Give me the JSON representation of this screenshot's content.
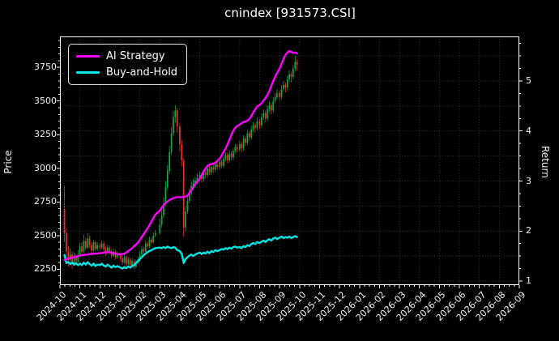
{
  "title": "cnindex [931573.CSI]",
  "legend": {
    "items": [
      {
        "label": "AI Strategy",
        "color": "#ff00ff"
      },
      {
        "label": "Buy-and-Hold",
        "color": "#00e5e5"
      }
    ]
  },
  "axes": {
    "left": {
      "label": "Price",
      "ticks": [
        2250,
        2500,
        2750,
        3000,
        3250,
        3500,
        3750
      ],
      "range": [
        2132,
        3980
      ]
    },
    "right": {
      "label": "Return",
      "ticks": [
        1,
        2,
        3,
        4,
        5
      ],
      "range": [
        0.92,
        5.89
      ],
      "grid_values": [
        1,
        1.5,
        2,
        2.5,
        3,
        3.5,
        4,
        4.5,
        5,
        5.5
      ]
    },
    "bottom": {
      "ticks": [
        "2024-10",
        "2024-11",
        "2024-12",
        "2025-01",
        "2025-02",
        "2025-03",
        "2025-04",
        "2025-05",
        "2025-06",
        "2025-07",
        "2025-08",
        "2025-09",
        "2025-10",
        "2025-11",
        "2025-12",
        "2026-01",
        "2026-02",
        "2026-03",
        "2026-04",
        "2026-05",
        "2026-06",
        "2026-07",
        "2026-08",
        "2026-09"
      ]
    }
  },
  "colors": {
    "background": "#000000",
    "text": "#f2f2f2",
    "spine": "#ffffff",
    "grid": "#ffffff",
    "candle_up": "#10a341",
    "candle_down": "#e03228",
    "ai_strategy": "#ff00ff",
    "buy_and_hold": "#00e5e5"
  },
  "chart_data": {
    "type": "candlestick",
    "title": "cnindex [931573.CSI]",
    "xlabel": "",
    "ylabel_left": "Price",
    "ylabel_right": "Return",
    "x_range_months": [
      "2024-10",
      "2026-09"
    ],
    "data_span": [
      "2024-10-08",
      "2025-09-28"
    ],
    "price_axis_ticks": [
      2250,
      2500,
      2750,
      3000,
      3250,
      3500,
      3750
    ],
    "return_axis_ticks": [
      1,
      2,
      3,
      4,
      5
    ],
    "series": [
      {
        "name": "AI Strategy",
        "axis": "right",
        "color": "#ff00ff",
        "column": "ai_return"
      },
      {
        "name": "Buy-and-Hold",
        "axis": "right",
        "color": "#00e5e5",
        "column": "bh_return"
      }
    ],
    "columns": [
      "date",
      "open",
      "high",
      "low",
      "close",
      "ai_return",
      "bh_return"
    ],
    "bars": [
      [
        "2024-10-08",
        2700,
        2870,
        2450,
        2520,
        1.42,
        1.52
      ],
      [
        "2024-10-11",
        2520,
        2555,
        2330,
        2380,
        1.44,
        1.36
      ],
      [
        "2024-10-14",
        2380,
        2420,
        2270,
        2320,
        1.45,
        1.38
      ],
      [
        "2024-10-17",
        2320,
        2405,
        2295,
        2360,
        1.46,
        1.34
      ],
      [
        "2024-10-20",
        2360,
        2385,
        2250,
        2290,
        1.47,
        1.37
      ],
      [
        "2024-10-23",
        2290,
        2375,
        2275,
        2340,
        1.48,
        1.33
      ],
      [
        "2024-10-26",
        2340,
        2365,
        2280,
        2310,
        1.49,
        1.36
      ],
      [
        "2024-10-29",
        2310,
        2395,
        2298,
        2350,
        1.5,
        1.32
      ],
      [
        "2024-11-01",
        2350,
        2445,
        2335,
        2420,
        1.51,
        1.35
      ],
      [
        "2024-11-04",
        2420,
        2450,
        2360,
        2380,
        1.52,
        1.32
      ],
      [
        "2024-11-07",
        2380,
        2505,
        2370,
        2460,
        1.52,
        1.37
      ],
      [
        "2024-11-10",
        2460,
        2480,
        2390,
        2410,
        1.53,
        1.33
      ],
      [
        "2024-11-13",
        2410,
        2520,
        2400,
        2480,
        1.53,
        1.38
      ],
      [
        "2024-11-16",
        2480,
        2500,
        2410,
        2430,
        1.54,
        1.34
      ],
      [
        "2024-11-19",
        2430,
        2455,
        2368,
        2390,
        1.54,
        1.31
      ],
      [
        "2024-11-22",
        2390,
        2470,
        2378,
        2450,
        1.55,
        1.35
      ],
      [
        "2024-11-25",
        2450,
        2465,
        2382,
        2400,
        1.55,
        1.3
      ],
      [
        "2024-11-28",
        2400,
        2452,
        2385,
        2430,
        1.55,
        1.33
      ],
      [
        "2024-12-01",
        2430,
        2448,
        2392,
        2410,
        1.56,
        1.32
      ],
      [
        "2024-12-04",
        2410,
        2462,
        2398,
        2440,
        1.56,
        1.35
      ],
      [
        "2024-12-07",
        2440,
        2458,
        2382,
        2400,
        1.57,
        1.31
      ],
      [
        "2024-12-10",
        2400,
        2418,
        2352,
        2370,
        1.57,
        1.29
      ],
      [
        "2024-12-13",
        2370,
        2432,
        2360,
        2410,
        1.58,
        1.33
      ],
      [
        "2024-12-16",
        2410,
        2425,
        2362,
        2380,
        1.58,
        1.3
      ],
      [
        "2024-12-19",
        2380,
        2398,
        2332,
        2350,
        1.57,
        1.27
      ],
      [
        "2024-12-22",
        2350,
        2402,
        2340,
        2380,
        1.56,
        1.31
      ],
      [
        "2024-12-25",
        2380,
        2395,
        2322,
        2340,
        1.55,
        1.28
      ],
      [
        "2024-12-28",
        2340,
        2382,
        2328,
        2360,
        1.54,
        1.3
      ],
      [
        "2025-01-02",
        2360,
        2375,
        2312,
        2330,
        1.53,
        1.27
      ],
      [
        "2025-01-05",
        2330,
        2348,
        2282,
        2300,
        1.54,
        1.25
      ],
      [
        "2025-01-08",
        2300,
        2362,
        2290,
        2340,
        1.55,
        1.28
      ],
      [
        "2025-01-11",
        2340,
        2355,
        2272,
        2290,
        1.57,
        1.26
      ],
      [
        "2025-01-14",
        2290,
        2342,
        2280,
        2320,
        1.6,
        1.29
      ],
      [
        "2025-01-17",
        2320,
        2335,
        2262,
        2280,
        1.63,
        1.27
      ],
      [
        "2025-01-20",
        2280,
        2332,
        2270,
        2310,
        1.66,
        1.3
      ],
      [
        "2025-01-23",
        2310,
        2322,
        2252,
        2270,
        1.7,
        1.32
      ],
      [
        "2025-01-26",
        2270,
        2322,
        2260,
        2300,
        1.73,
        1.36
      ],
      [
        "2025-01-29",
        2300,
        2342,
        2290,
        2320,
        1.77,
        1.4
      ],
      [
        "2025-02-01",
        2320,
        2382,
        2310,
        2360,
        1.82,
        1.44
      ],
      [
        "2025-02-04",
        2360,
        2422,
        2350,
        2400,
        1.88,
        1.48
      ],
      [
        "2025-02-07",
        2400,
        2418,
        2362,
        2380,
        1.94,
        1.52
      ],
      [
        "2025-02-10",
        2380,
        2462,
        2370,
        2440,
        2.0,
        1.55
      ],
      [
        "2025-02-13",
        2440,
        2458,
        2402,
        2420,
        2.06,
        1.58
      ],
      [
        "2025-02-16",
        2420,
        2492,
        2410,
        2470,
        2.12,
        1.6
      ],
      [
        "2025-02-19",
        2470,
        2488,
        2432,
        2450,
        2.19,
        1.62
      ],
      [
        "2025-02-22",
        2450,
        2522,
        2440,
        2500,
        2.26,
        1.64
      ],
      [
        "2025-02-25",
        2500,
        2542,
        2488,
        2520,
        2.33,
        1.66
      ],
      [
        "2025-03-01",
        2520,
        2625,
        2505,
        2580,
        2.41,
        1.67
      ],
      [
        "2025-03-04",
        2580,
        2695,
        2560,
        2650,
        2.47,
        1.66
      ],
      [
        "2025-03-07",
        2650,
        2785,
        2630,
        2740,
        2.52,
        1.68
      ],
      [
        "2025-03-10",
        2740,
        2905,
        2720,
        2860,
        2.56,
        1.66
      ],
      [
        "2025-03-13",
        2860,
        3025,
        2840,
        2980,
        2.59,
        1.69
      ],
      [
        "2025-03-16",
        2980,
        3165,
        2960,
        3120,
        2.62,
        1.67
      ],
      [
        "2025-03-19",
        3120,
        3305,
        3100,
        3260,
        2.64,
        1.66
      ],
      [
        "2025-03-22",
        3260,
        3425,
        3240,
        3380,
        2.66,
        1.68
      ],
      [
        "2025-03-25",
        3380,
        3470,
        3340,
        3430,
        2.67,
        1.67
      ],
      [
        "2025-03-28",
        3430,
        3450,
        3265,
        3310,
        2.68,
        1.62
      ],
      [
        "2025-04-01",
        3310,
        3335,
        3130,
        3180,
        2.68,
        1.6
      ],
      [
        "2025-04-04",
        3180,
        3210,
        3015,
        3060,
        2.68,
        1.55
      ],
      [
        "2025-04-07",
        3060,
        3075,
        2490,
        2560,
        2.68,
        1.36
      ],
      [
        "2025-04-10",
        2560,
        2715,
        2530,
        2680,
        2.69,
        1.44
      ],
      [
        "2025-04-13",
        2680,
        2795,
        2660,
        2760,
        2.71,
        1.48
      ],
      [
        "2025-04-16",
        2760,
        2850,
        2740,
        2820,
        2.76,
        1.51
      ],
      [
        "2025-04-19",
        2820,
        2900,
        2800,
        2870,
        2.82,
        1.53
      ],
      [
        "2025-04-22",
        2870,
        2920,
        2838,
        2890,
        2.88,
        1.5
      ],
      [
        "2025-04-25",
        2890,
        2938,
        2855,
        2910,
        2.94,
        1.53
      ],
      [
        "2025-04-28",
        2910,
        2962,
        2882,
        2930,
        2.99,
        1.55
      ],
      [
        "2025-05-01",
        2930,
        2975,
        2905,
        2950,
        3.05,
        1.57
      ],
      [
        "2025-05-04",
        2950,
        2968,
        2895,
        2920,
        3.12,
        1.54
      ],
      [
        "2025-05-07",
        2920,
        2992,
        2902,
        2970,
        3.19,
        1.57
      ],
      [
        "2025-05-10",
        2970,
        2988,
        2925,
        2950,
        3.25,
        1.55
      ],
      [
        "2025-05-13",
        2950,
        3022,
        2932,
        3000,
        3.3,
        1.59
      ],
      [
        "2025-05-16",
        3000,
        3018,
        2948,
        2970,
        3.33,
        1.56
      ],
      [
        "2025-05-19",
        2970,
        3032,
        2952,
        3010,
        3.34,
        1.6
      ],
      [
        "2025-05-22",
        3010,
        3028,
        2965,
        2990,
        3.35,
        1.58
      ],
      [
        "2025-05-25",
        2990,
        3052,
        2972,
        3030,
        3.36,
        1.62
      ],
      [
        "2025-05-28",
        3030,
        3048,
        2988,
        3010,
        3.4,
        1.6
      ],
      [
        "2025-06-01",
        3010,
        3072,
        2992,
        3050,
        3.45,
        1.62
      ],
      [
        "2025-06-04",
        3050,
        3068,
        2998,
        3020,
        3.51,
        1.64
      ],
      [
        "2025-06-07",
        3020,
        3092,
        3002,
        3070,
        3.58,
        1.63
      ],
      [
        "2025-06-10",
        3070,
        3122,
        3052,
        3100,
        3.65,
        1.66
      ],
      [
        "2025-06-13",
        3100,
        3118,
        3038,
        3060,
        3.73,
        1.64
      ],
      [
        "2025-06-16",
        3060,
        3132,
        3042,
        3110,
        3.82,
        1.67
      ],
      [
        "2025-06-19",
        3110,
        3128,
        3058,
        3080,
        3.92,
        1.65
      ],
      [
        "2025-06-22",
        3080,
        3152,
        3062,
        3130,
        4.0,
        1.68
      ],
      [
        "2025-06-25",
        3130,
        3182,
        3112,
        3160,
        4.06,
        1.69
      ],
      [
        "2025-06-28",
        3160,
        3178,
        3118,
        3140,
        4.1,
        1.67
      ],
      [
        "2025-07-01",
        3140,
        3205,
        3122,
        3180,
        4.13,
        1.68
      ],
      [
        "2025-07-04",
        3180,
        3198,
        3125,
        3150,
        4.16,
        1.66
      ],
      [
        "2025-07-07",
        3150,
        3245,
        3132,
        3220,
        4.18,
        1.7
      ],
      [
        "2025-07-10",
        3220,
        3238,
        3165,
        3190,
        4.19,
        1.68
      ],
      [
        "2025-07-13",
        3190,
        3285,
        3172,
        3260,
        4.21,
        1.72
      ],
      [
        "2025-07-16",
        3260,
        3278,
        3205,
        3230,
        4.24,
        1.7
      ],
      [
        "2025-07-19",
        3230,
        3315,
        3212,
        3290,
        4.3,
        1.74
      ],
      [
        "2025-07-22",
        3290,
        3345,
        3272,
        3320,
        4.37,
        1.76
      ],
      [
        "2025-07-25",
        3320,
        3338,
        3272,
        3300,
        4.43,
        1.74
      ],
      [
        "2025-07-28",
        3300,
        3375,
        3282,
        3350,
        4.49,
        1.78
      ],
      [
        "2025-08-01",
        3350,
        3368,
        3292,
        3320,
        4.52,
        1.76
      ],
      [
        "2025-08-04",
        3320,
        3408,
        3302,
        3380,
        4.56,
        1.79
      ],
      [
        "2025-08-07",
        3380,
        3438,
        3360,
        3410,
        4.61,
        1.81
      ],
      [
        "2025-08-10",
        3410,
        3428,
        3342,
        3370,
        4.66,
        1.78
      ],
      [
        "2025-08-13",
        3370,
        3468,
        3352,
        3440,
        4.72,
        1.82
      ],
      [
        "2025-08-16",
        3440,
        3498,
        3420,
        3470,
        4.8,
        1.84
      ],
      [
        "2025-08-19",
        3470,
        3488,
        3402,
        3430,
        4.9,
        1.81
      ],
      [
        "2025-08-22",
        3430,
        3528,
        3412,
        3500,
        5.0,
        1.85
      ],
      [
        "2025-08-25",
        3500,
        3558,
        3482,
        3530,
        5.08,
        1.87
      ],
      [
        "2025-08-28",
        3530,
        3588,
        3512,
        3560,
        5.16,
        1.84
      ],
      [
        "2025-09-01",
        3560,
        3578,
        3498,
        3530,
        5.25,
        1.87
      ],
      [
        "2025-09-04",
        3530,
        3618,
        3512,
        3590,
        5.35,
        1.89
      ],
      [
        "2025-09-07",
        3590,
        3648,
        3570,
        3620,
        5.44,
        1.86
      ],
      [
        "2025-09-10",
        3620,
        3638,
        3565,
        3600,
        5.52,
        1.88
      ],
      [
        "2025-09-13",
        3600,
        3688,
        3582,
        3660,
        5.57,
        1.87
      ],
      [
        "2025-09-16",
        3660,
        3728,
        3640,
        3700,
        5.6,
        1.89
      ],
      [
        "2025-09-19",
        3700,
        3718,
        3638,
        3680,
        5.58,
        1.86
      ],
      [
        "2025-09-22",
        3680,
        3768,
        3662,
        3740,
        5.56,
        1.88
      ],
      [
        "2025-09-25",
        3740,
        3840,
        3722,
        3790,
        5.57,
        1.9
      ],
      [
        "2025-09-28",
        3790,
        3812,
        3725,
        3770,
        5.55,
        1.88
      ]
    ]
  }
}
